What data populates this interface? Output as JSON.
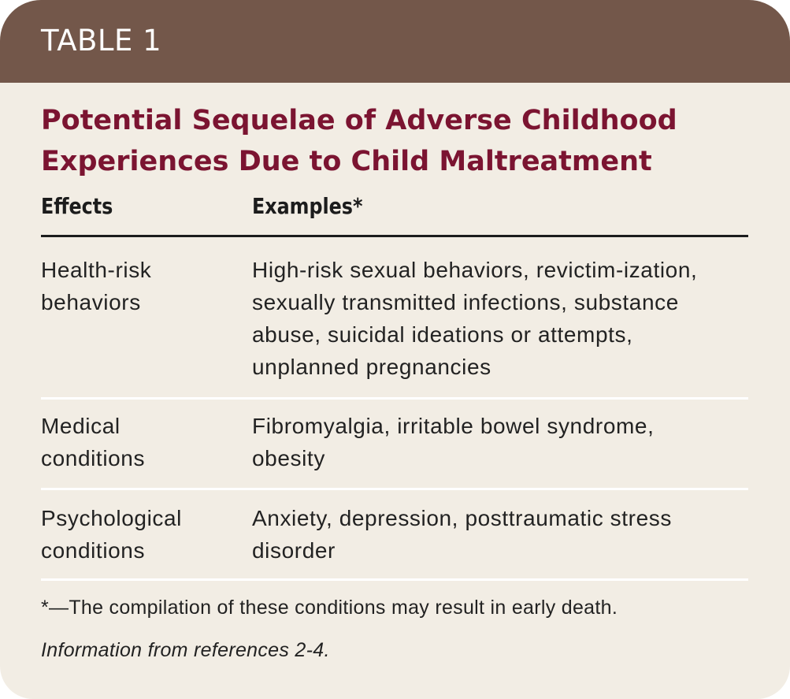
{
  "header": {
    "label": "TABLE 1"
  },
  "title": "Potential Sequelae of Adverse Childhood Experiences Due to Child Maltreatment",
  "table": {
    "columns": [
      "Effects",
      "Examples*"
    ],
    "rows": [
      {
        "effect": "Health-risk behaviors",
        "examples": "High-risk sexual behaviors, revictim-ization, sexually transmitted infections, substance abuse, suicidal ideations or attempts, unplanned pregnancies"
      },
      {
        "effect": "Medical conditions",
        "examples": "Fibromyalgia, irritable bowel syndrome, obesity"
      },
      {
        "effect": "Psychological conditions",
        "examples": "Anxiety, depression, posttraumatic stress disorder"
      }
    ]
  },
  "footnotes": {
    "note": "*—The compilation of these conditions may result in early death.",
    "source": "Information from references 2-4."
  },
  "colors": {
    "header_bar": "#73574a",
    "title": "#7b1431",
    "background": "#f2ede4"
  }
}
